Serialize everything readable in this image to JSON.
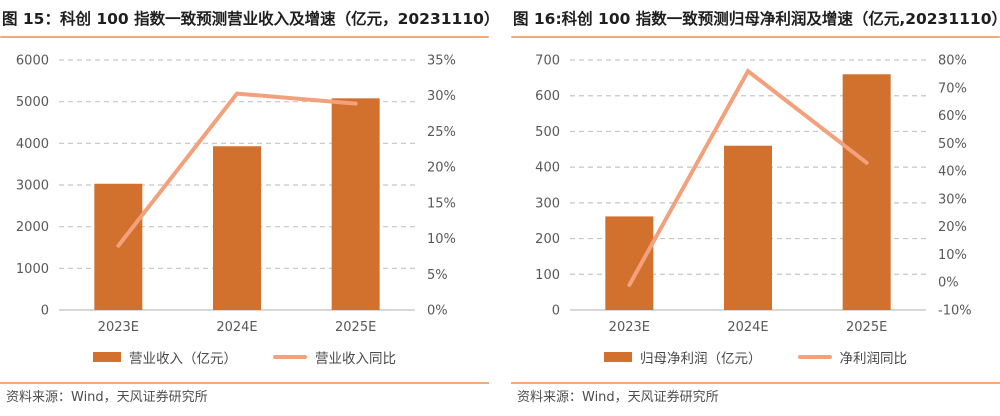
{
  "figures": [
    {
      "title": "图 15：科创 100 指数一致预测营业收入及增速（亿元，20231110）",
      "legend_bar": "营业收入（亿元）",
      "legend_line": "营业收入同比",
      "source": "资料来源：Wind，天风证券研究所"
    },
    {
      "title": "图 16:科创 100 指数一致预测归母净利润及增速（亿元,20231110）",
      "legend_bar": "归母净利润（亿元）",
      "legend_line": "净利润同比",
      "source": "资料来源：Wind，天风证券研究所"
    }
  ],
  "chart_data": [
    {
      "type": "bar",
      "title": "科创 100 指数一致预测营业收入及增速（亿元，20231110）",
      "categories": [
        "2023E",
        "2024E",
        "2025E"
      ],
      "series": [
        {
          "name": "营业收入（亿元）",
          "type": "bar",
          "axis": "left",
          "values": [
            3030,
            3930,
            5080
          ]
        },
        {
          "name": "营业收入同比",
          "type": "line",
          "axis": "right",
          "values": [
            9.0,
            30.3,
            28.9
          ],
          "unit": "%"
        }
      ],
      "left_axis": {
        "min": 0,
        "max": 6000,
        "step": 1000,
        "labels": [
          "0",
          "1000",
          "2000",
          "3000",
          "4000",
          "5000",
          "6000"
        ]
      },
      "right_axis": {
        "min": 0,
        "max": 35,
        "step": 5,
        "labels": [
          "0%",
          "5%",
          "10%",
          "15%",
          "20%",
          "25%",
          "30%",
          "35%"
        ]
      },
      "grid": "horizontal-dashed",
      "legend_position": "bottom"
    },
    {
      "type": "bar",
      "title": "科创 100 指数一致预测归母净利润及增速（亿元,20231110）",
      "categories": [
        "2023E",
        "2024E",
        "2025E"
      ],
      "series": [
        {
          "name": "归母净利润（亿元）",
          "type": "bar",
          "axis": "left",
          "values": [
            262,
            460,
            660
          ]
        },
        {
          "name": "净利润同比",
          "type": "line",
          "axis": "right",
          "values": [
            -1,
            76,
            43
          ],
          "unit": "%"
        }
      ],
      "left_axis": {
        "min": 0,
        "max": 700,
        "step": 100,
        "labels": [
          "0",
          "100",
          "200",
          "300",
          "400",
          "500",
          "600",
          "700"
        ]
      },
      "right_axis": {
        "min": -10,
        "max": 80,
        "step": 10,
        "labels": [
          "-10%",
          "0%",
          "10%",
          "20%",
          "30%",
          "40%",
          "50%",
          "60%",
          "70%",
          "80%"
        ]
      },
      "grid": "horizontal-dashed",
      "legend_position": "bottom"
    }
  ],
  "colors": {
    "bar": "#D2702D",
    "line": "#F2A17C",
    "accent_rule": "#F3AA76",
    "grid": "#C6C6C6",
    "axis_line": "#C0C0C0",
    "axis_text": "#595959",
    "title_text": "#1F1F1F",
    "source_text": "#4D4D4D"
  }
}
